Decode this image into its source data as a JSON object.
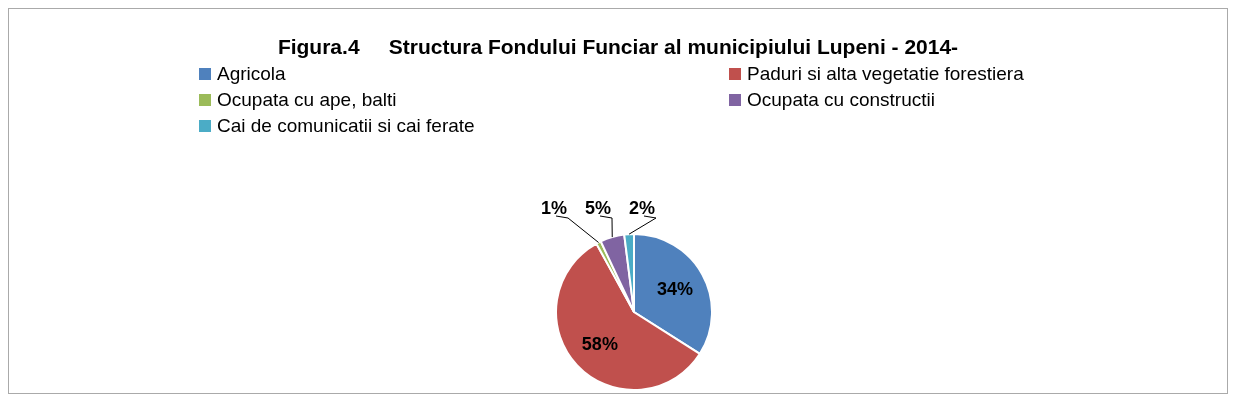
{
  "chart_data": {
    "type": "pie",
    "title": "Figura.4     Structura Fondului Funciar al municipiului Lupeni - 2014-",
    "categories": [
      "Agricola",
      "Paduri si alta vegetatie forestiera",
      "Ocupata cu ape, balti",
      "Ocupata cu constructii",
      "Cai de comunicatii si cai ferate"
    ],
    "values": [
      34,
      58,
      1,
      5,
      2
    ],
    "colors": [
      "#4f81bd",
      "#c0504d",
      "#9bbb59",
      "#8064a2",
      "#4bacc6"
    ],
    "value_labels": [
      "34%",
      "58%",
      "1%",
      "5%",
      "2%"
    ],
    "legend": "top"
  }
}
